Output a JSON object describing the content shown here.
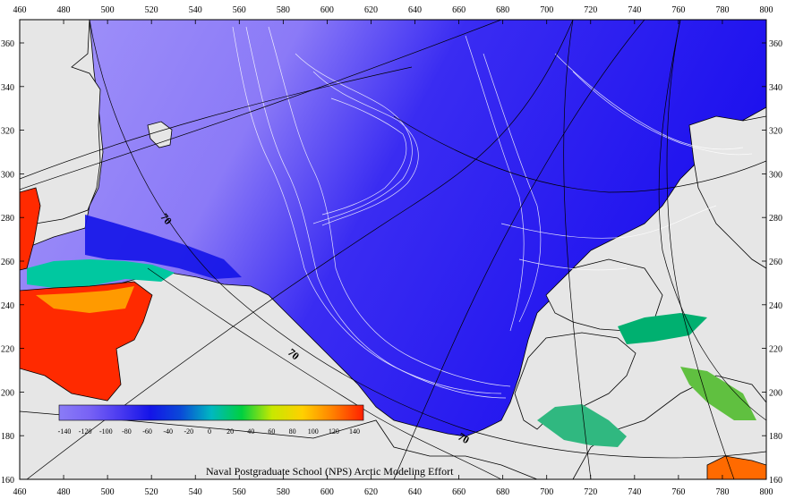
{
  "map": {
    "credit": "Naval Postgraduate School (NPS) Arctic Modeling Effort",
    "x_ticks": [
      "460",
      "480",
      "500",
      "520",
      "540",
      "560",
      "580",
      "600",
      "620",
      "640",
      "660",
      "680",
      "700",
      "720",
      "740",
      "760",
      "780",
      "800"
    ],
    "y_ticks": [
      "360",
      "340",
      "320",
      "300",
      "280",
      "260",
      "240",
      "220",
      "200",
      "180",
      "160"
    ],
    "latitude_labels": [
      "70",
      "70",
      "70"
    ],
    "colorbar": {
      "ticks": [
        "-140",
        "-120",
        "-100",
        "-80",
        "-60",
        "-40",
        "-20",
        "0",
        "20",
        "40",
        "60",
        "80",
        "100",
        "120",
        "140"
      ],
      "colors": [
        "#8a7cf7",
        "#7862f5",
        "#4a3af0",
        "#1414e8",
        "#0a4ad8",
        "#00b8c0",
        "#00d040",
        "#c8e800",
        "#ffd000",
        "#ff8000",
        "#ff2000"
      ]
    },
    "colors": {
      "land": "#e6e6e6",
      "ocean_deep": "#2a1cf0",
      "ocean_shelf": "#9a8af8",
      "contour": "#ffffff",
      "graticule": "#000000"
    }
  }
}
